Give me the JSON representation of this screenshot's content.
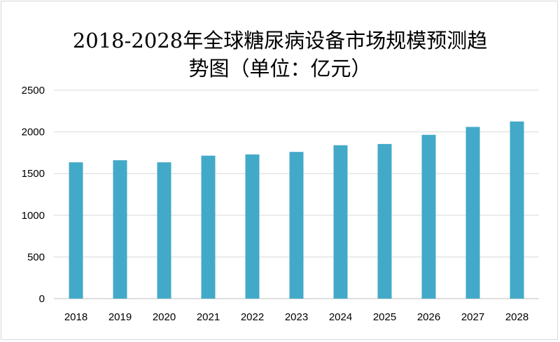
{
  "chart_data": {
    "type": "bar",
    "title_lines": [
      "2018-2028年全球糖尿病设备市场规模预测趋",
      "势图（单位：亿元）"
    ],
    "categories": [
      "2018",
      "2019",
      "2020",
      "2021",
      "2022",
      "2023",
      "2024",
      "2025",
      "2026",
      "2027",
      "2028"
    ],
    "values": [
      1635,
      1660,
      1635,
      1715,
      1730,
      1760,
      1840,
      1855,
      1965,
      2060,
      2125
    ],
    "ylim": [
      0,
      2500
    ],
    "yticks": [
      "0",
      "500",
      "1000",
      "1500",
      "2000",
      "2500"
    ],
    "bar_color": "#43a9c8",
    "grid": true,
    "legend": "none"
  }
}
